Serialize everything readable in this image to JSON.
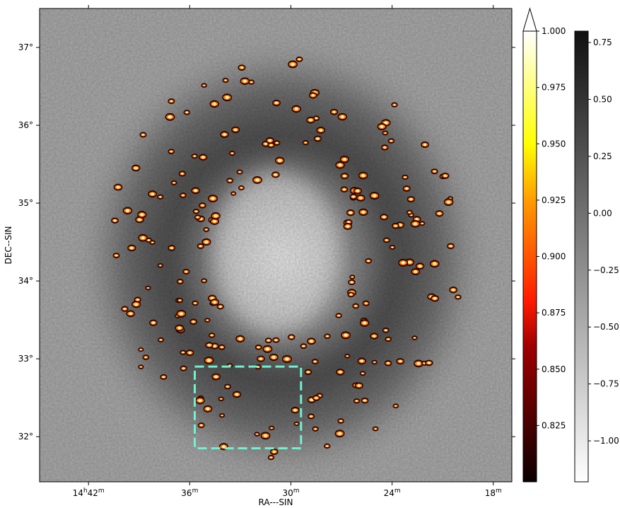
{
  "chart_data": {
    "type": "heatmap",
    "title": "",
    "xlabel": "RA---SIN",
    "ylabel": "DEC--SIN",
    "x_ticks": [
      {
        "h": "14",
        "m": "42",
        "label": "14h42m"
      },
      {
        "m": "36",
        "label": "36m"
      },
      {
        "m": "30",
        "label": "30m"
      },
      {
        "m": "24",
        "label": "24m"
      },
      {
        "m": "18",
        "label": "18m"
      }
    ],
    "x_tick_minutes": [
      42,
      36,
      30,
      24,
      18
    ],
    "x_range_minutes": [
      44.9,
      16.9
    ],
    "y_ticks": [
      "32°",
      "33°",
      "34°",
      "35°",
      "36°",
      "37°"
    ],
    "y_tick_values": [
      32,
      33,
      34,
      35,
      36,
      37
    ],
    "y_range": [
      31.42,
      37.5
    ],
    "colorbars": [
      {
        "name": "hot",
        "range": [
          0.8,
          1.0
        ],
        "ticks": [
          "0.825",
          "0.850",
          "0.875",
          "0.900",
          "0.925",
          "0.950",
          "0.975",
          "1.000"
        ],
        "tick_values": [
          0.825,
          0.85,
          0.875,
          0.9,
          0.925,
          0.95,
          0.975,
          1.0
        ],
        "extend": "max"
      },
      {
        "name": "gray_r",
        "range": [
          -1.18,
          0.8
        ],
        "ticks": [
          "−1.00",
          "−0.75",
          "−0.50",
          "−0.25",
          "0.00",
          "0.25",
          "0.50",
          "0.75"
        ],
        "tick_values": [
          -1.0,
          -0.75,
          -0.5,
          -0.25,
          0.0,
          0.25,
          0.5,
          0.75
        ]
      }
    ],
    "region": {
      "ra_minutes": [
        35.7,
        29.4
      ],
      "dec": [
        31.85,
        32.9
      ],
      "color": "#6ff2d0",
      "style": "dashed"
    },
    "grid": false
  }
}
